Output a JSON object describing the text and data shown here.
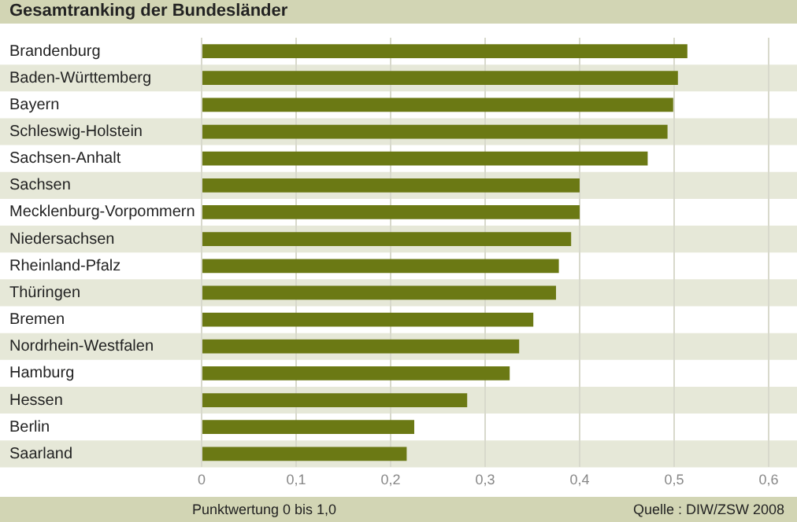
{
  "chart_data": {
    "type": "bar",
    "orientation": "horizontal",
    "title": "Gesamtranking der Bundesländer",
    "xlabel": "Punktwertung 0 bis 1,0",
    "annotations": [
      "Quelle : DIW/ZSW 2008"
    ],
    "categories": [
      "Brandenburg",
      "Baden-Württemberg",
      "Bayern",
      "Schleswig-Holstein",
      "Sachsen-Anhalt",
      "Sachsen",
      "Mecklenburg-Vorpommern",
      "Niedersachsen",
      "Rheinland-Pfalz",
      "Thüringen",
      "Bremen",
      "Nordrhein-Westfalen",
      "Hamburg",
      "Hessen",
      "Berlin",
      "Saarland"
    ],
    "values": [
      0.514,
      0.504,
      0.499,
      0.493,
      0.472,
      0.4,
      0.4,
      0.391,
      0.378,
      0.375,
      0.351,
      0.336,
      0.326,
      0.281,
      0.225,
      0.217
    ],
    "color": "#6b7914",
    "xlim": [
      0,
      0.6
    ],
    "xticks": [
      0,
      {
        "value": 0.1,
        "label": "0,1"
      },
      {
        "value": 0.2,
        "label": "0,2"
      },
      {
        "value": 0.3,
        "label": "0,3"
      },
      {
        "value": 0.4,
        "label": "0,4"
      },
      {
        "value": 0.5,
        "label": "0,5"
      },
      {
        "value": 0.6,
        "label": "0,6"
      }
    ],
    "grid": "x",
    "legend": false
  }
}
